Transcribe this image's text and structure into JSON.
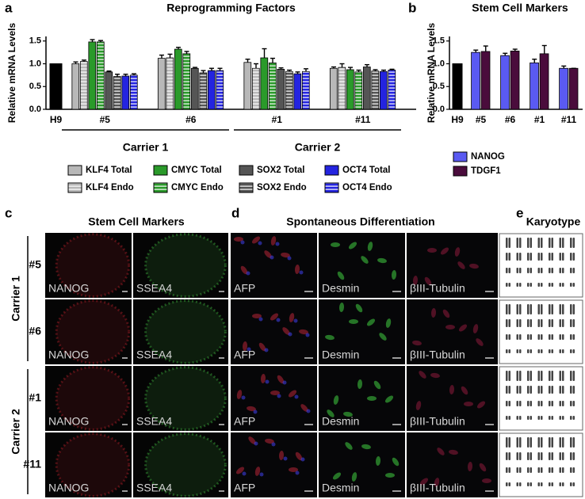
{
  "chart_data": [
    {
      "type": "bar",
      "letter": "a",
      "title": "Reprogramming Factors",
      "y_label": "Relative mRNA Levels",
      "ylim": [
        0,
        1.6
      ],
      "yticks": [
        {
          "value": 0,
          "label": "0.0"
        },
        {
          "value": 0.5,
          "label": "0.5"
        },
        {
          "value": 1,
          "label": "1.0"
        },
        {
          "value": 1.5,
          "label": "1.5"
        }
      ],
      "reference": {
        "category": "H9",
        "value": 1,
        "color": "#000000"
      },
      "categories": [
        "#5",
        "#6",
        "#1",
        "#11"
      ],
      "groups": [
        {
          "label": "Carrier 1",
          "size": 2
        },
        {
          "label": "Carrier 2",
          "size": 2
        }
      ],
      "series": [
        {
          "name": "KLF4 Total",
          "color": "#b8b8b8",
          "hatched": false,
          "values": [
            1.0,
            1.12,
            1.03,
            0.9
          ],
          "errors": [
            0.04,
            0.07,
            0.07,
            0.03
          ]
        },
        {
          "name": "KLF4 Endo",
          "color": "#b8b8b8",
          "hatched": true,
          "values": [
            1.05,
            1.13,
            0.9,
            0.92
          ],
          "errors": [
            0.03,
            0.08,
            0.1,
            0.08
          ]
        },
        {
          "name": "CMYC Total",
          "color": "#2a9a2a",
          "hatched": false,
          "values": [
            1.48,
            1.32,
            1.13,
            0.87
          ],
          "errors": [
            0.05,
            0.04,
            0.2,
            0.05
          ]
        },
        {
          "name": "CMYC Endo",
          "color": "#2a9a2a",
          "hatched": true,
          "values": [
            1.48,
            1.22,
            1.02,
            0.82
          ],
          "errors": [
            0.03,
            0.05,
            0.1,
            0.04
          ]
        },
        {
          "name": "SOX2 Total",
          "color": "#555555",
          "hatched": false,
          "values": [
            0.82,
            0.9,
            0.88,
            0.93
          ],
          "errors": [
            0.02,
            0.02,
            0.03,
            0.05
          ]
        },
        {
          "name": "SOX2 Endo",
          "color": "#555555",
          "hatched": true,
          "values": [
            0.72,
            0.8,
            0.83,
            0.84
          ],
          "errors": [
            0.05,
            0.05,
            0.03,
            0.03
          ]
        },
        {
          "name": "OCT4 Total",
          "color": "#2424e0",
          "hatched": false,
          "values": [
            0.73,
            0.85,
            0.78,
            0.83
          ],
          "errors": [
            0.04,
            0.05,
            0.04,
            0.03
          ]
        },
        {
          "name": "OCT4 Endo",
          "color": "#2424e0",
          "hatched": true,
          "values": [
            0.75,
            0.85,
            0.83,
            0.86
          ],
          "errors": [
            0.03,
            0.05,
            0.06,
            0.02
          ]
        }
      ]
    },
    {
      "type": "bar",
      "letter": "b",
      "title": "Stem Cell Markers",
      "y_label": "Relative mRNA Levels",
      "ylim": [
        0,
        1.6
      ],
      "yticks": [
        {
          "value": 0,
          "label": "0.0"
        },
        {
          "value": 0.5,
          "label": "0.5"
        },
        {
          "value": 1,
          "label": "1.0"
        },
        {
          "value": 1.5,
          "label": "1.5"
        }
      ],
      "reference": {
        "category": "H9",
        "value": 1,
        "color": "#000000"
      },
      "categories": [
        "#5",
        "#6",
        "#1",
        "#11"
      ],
      "series": [
        {
          "name": "NANOG",
          "color": "#5a5af2",
          "hatched": false,
          "values": [
            1.25,
            1.18,
            1.02,
            0.9
          ],
          "errors": [
            0.05,
            0.05,
            0.08,
            0.05
          ]
        },
        {
          "name": "TDGF1",
          "color": "#4a0c3c",
          "hatched": false,
          "values": [
            1.27,
            1.28,
            1.22,
            0.9
          ],
          "errors": [
            0.12,
            0.04,
            0.18,
            0.0
          ]
        }
      ]
    }
  ],
  "panels": {
    "c": {
      "letter": "c",
      "title": "Stem Cell Markers",
      "groups": [
        {
          "label": "Carrier 1",
          "rows": [
            "#5",
            "#6"
          ]
        },
        {
          "label": "Carrier 2",
          "rows": [
            "#1",
            "#11"
          ]
        }
      ],
      "channels": [
        "NANOG",
        "SSEA4"
      ]
    },
    "d": {
      "letter": "d",
      "title": "Spontaneous Differentiation",
      "channels": [
        "AFP",
        "Desmin",
        "βIII-Tubulin"
      ]
    },
    "e": {
      "letter": "e",
      "title": "Karyotype"
    }
  }
}
